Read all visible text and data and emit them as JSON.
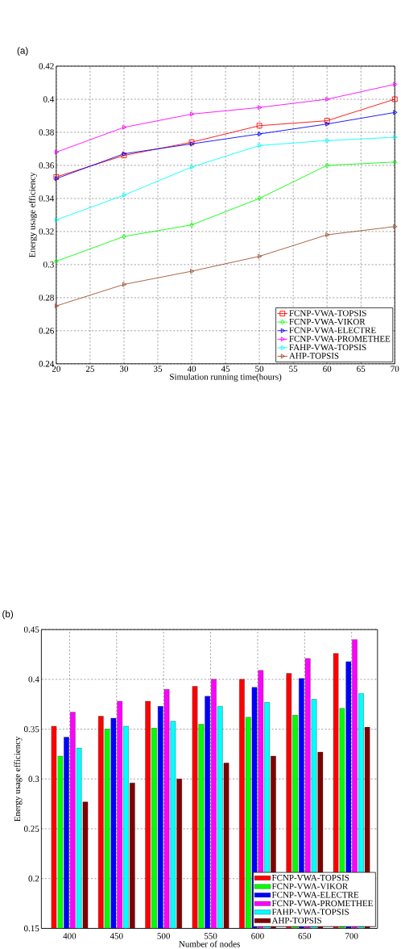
{
  "chart_data": [
    {
      "type": "line",
      "title": "(a)",
      "xlabel": "Simulation running time(hours)",
      "ylabel": "Energy usage efficiency",
      "x": [
        20,
        30,
        40,
        50,
        60,
        70
      ],
      "series": [
        {
          "name": "FCNP-VWA-TOPSIS",
          "color": "#ff0000",
          "marker": "square",
          "values": [
            0.353,
            0.366,
            0.374,
            0.384,
            0.387,
            0.4
          ]
        },
        {
          "name": "FCNP-VWA-VIKOR",
          "color": "#00ff00",
          "marker": "diamond",
          "values": [
            0.302,
            0.317,
            0.324,
            0.34,
            0.36,
            0.362
          ]
        },
        {
          "name": "FCNP-VWA-ELECTRE",
          "color": "#0000ff",
          "marker": "triangle",
          "values": [
            0.352,
            0.367,
            0.373,
            0.379,
            0.385,
            0.392
          ]
        },
        {
          "name": "FCNP-VWA-PROMETHEE",
          "color": "#ff00ff",
          "marker": "triangle",
          "values": [
            0.368,
            0.383,
            0.391,
            0.395,
            0.4,
            0.409
          ]
        },
        {
          "name": "FAHP-VWA-TOPSIS",
          "color": "#00ffff",
          "marker": "triangle",
          "values": [
            0.327,
            0.342,
            0.359,
            0.372,
            0.375,
            0.377
          ]
        },
        {
          "name": "AHP-TOPSIS",
          "color": "#a0522d",
          "marker": "triangle",
          "values": [
            0.275,
            0.288,
            0.296,
            0.305,
            0.318,
            0.323
          ]
        }
      ],
      "xlim": [
        20,
        70
      ],
      "xticks": [
        20,
        25,
        30,
        35,
        40,
        45,
        50,
        55,
        60,
        65,
        70
      ],
      "ylim": [
        0.24,
        0.42
      ],
      "yticks": [
        0.24,
        0.26,
        0.28,
        0.3,
        0.32,
        0.34,
        0.36,
        0.38,
        0.4,
        0.42
      ],
      "grid": true,
      "legend": "bottom right",
      "line_style": "solid"
    },
    {
      "type": "bar",
      "title": "(b)",
      "xlabel": "Number of nodes",
      "ylabel": "Energy usage efficiency",
      "categories": [
        "400",
        "450",
        "500",
        "550",
        "600",
        "650",
        "700"
      ],
      "series": [
        {
          "name": "FCNP-VWA-TOPSIS",
          "color": "#ff0000",
          "values": [
            0.353,
            0.363,
            0.378,
            0.393,
            0.4,
            0.406,
            0.426
          ]
        },
        {
          "name": "FCNP-VWA-VIKOR",
          "color": "#00ff00",
          "values": [
            0.323,
            0.35,
            0.351,
            0.355,
            0.362,
            0.364,
            0.371
          ]
        },
        {
          "name": "FCNP-VWA-ELECTRE",
          "color": "#0000ff",
          "values": [
            0.342,
            0.361,
            0.373,
            0.383,
            0.392,
            0.401,
            0.418
          ]
        },
        {
          "name": "FCNP-VWA-PROMETHEE",
          "color": "#ff00ff",
          "values": [
            0.367,
            0.378,
            0.39,
            0.4,
            0.409,
            0.421,
            0.44
          ]
        },
        {
          "name": "FAHP-VWA-TOPSIS",
          "color": "#00ffff",
          "values": [
            0.331,
            0.353,
            0.358,
            0.373,
            0.377,
            0.38,
            0.386
          ]
        },
        {
          "name": "AHP-TOPSIS",
          "color": "#800000",
          "values": [
            0.277,
            0.296,
            0.3,
            0.316,
            0.323,
            0.327,
            0.352
          ]
        }
      ],
      "ylim": [
        0.15,
        0.45
      ],
      "yticks": [
        0.15,
        0.2,
        0.25,
        0.3,
        0.35,
        0.4,
        0.45
      ],
      "grid": true,
      "legend": "bottom right"
    }
  ]
}
